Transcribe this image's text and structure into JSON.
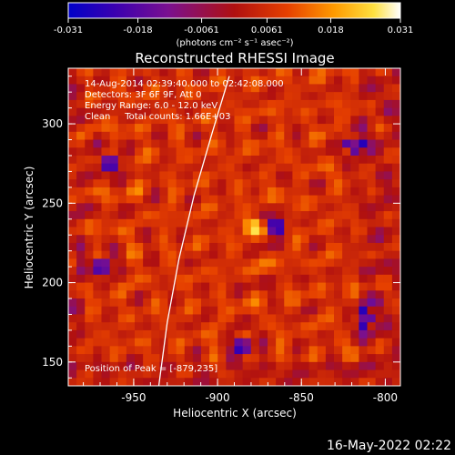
{
  "chart_data": {
    "type": "heatmap",
    "title": "Reconstructed RHESSI Image",
    "xlabel": "Heliocentric X (arcsec)",
    "ylabel": "Heliocentric Y (arcsec)",
    "xlim": [
      -989,
      -791
    ],
    "ylim": [
      135,
      335
    ],
    "xticks": [
      -950,
      -900,
      -850,
      -800
    ],
    "yticks": [
      150,
      200,
      250,
      300
    ],
    "xtick_labels": [
      "-950",
      "-900",
      "-850",
      "-800"
    ],
    "ytick_labels": [
      "150",
      "200",
      "250",
      "300"
    ],
    "colorbar": {
      "range": [
        -0.031,
        0.031
      ],
      "ticks": [
        -0.031,
        -0.018,
        -0.0061,
        0.0061,
        0.018,
        0.031
      ],
      "tick_labels": [
        "-0.031",
        "-0.018",
        "-0.0061",
        "0.0061",
        "0.018",
        "0.031"
      ],
      "label": "(photons cm⁻² s⁻¹ asec⁻²)",
      "colors": [
        "#0000c8",
        "#3a00b0",
        "#7a1090",
        "#b01010",
        "#e64000",
        "#ff9a00",
        "#ffe040",
        "#ffffff"
      ]
    },
    "peak": {
      "x": -879,
      "y": 235
    },
    "limb_curve": [
      [
        -935,
        135
      ],
      [
        -930,
        175
      ],
      [
        -923,
        215
      ],
      [
        -914,
        255
      ],
      [
        -903,
        295
      ],
      [
        -893,
        330
      ]
    ],
    "annotations": [
      "14-Aug-2014 02:39:40.000 to 02:42:08.000",
      "Detectors: 3F 6F 9F, Att 0",
      "Energy Range: 6.0 - 12.0 keV",
      "Clean     Total counts: 1.66E+03"
    ],
    "peak_label": "Position of Peak = [-879,235]"
  },
  "footer": {
    "timestamp": "16-May-2022 02:22"
  }
}
